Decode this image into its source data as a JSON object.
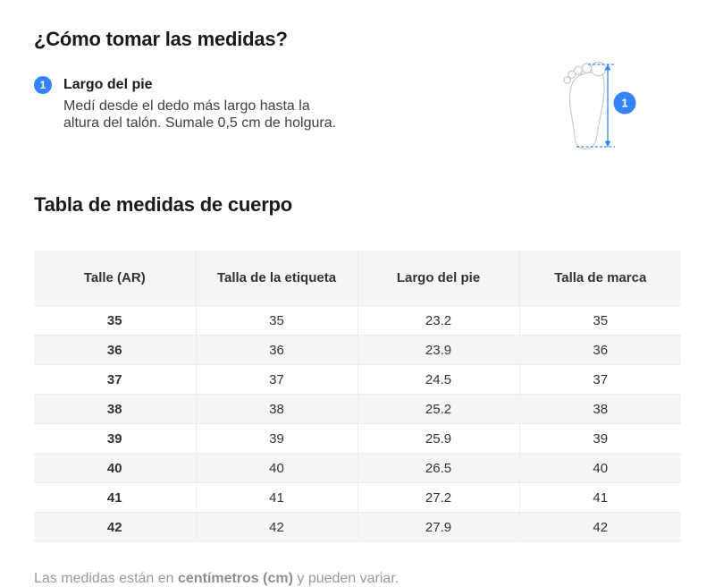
{
  "page": {
    "title": "¿Cómo tomar las medidas?",
    "accent_color": "#3483fa"
  },
  "instructions": {
    "items": [
      {
        "number": "1",
        "label": "Largo del pie",
        "description_line1": "Medí desde el dedo más largo hasta la",
        "description_line2": "altura del talón. Sumale 0,5 cm de holgura."
      }
    ],
    "illustration": {
      "name": "foot-length-diagram",
      "marker": "1"
    }
  },
  "size_table": {
    "title": "Tabla de medidas de cuerpo",
    "columns": [
      "Talle (AR)",
      "Talla de la etiqueta",
      "Largo del pie",
      "Talla de marca"
    ],
    "rows": [
      [
        "35",
        "35",
        "23.2",
        "35"
      ],
      [
        "36",
        "36",
        "23.9",
        "36"
      ],
      [
        "37",
        "37",
        "24.5",
        "37"
      ],
      [
        "38",
        "38",
        "25.2",
        "38"
      ],
      [
        "39",
        "39",
        "25.9",
        "39"
      ],
      [
        "40",
        "40",
        "26.5",
        "40"
      ],
      [
        "41",
        "41",
        "27.2",
        "41"
      ],
      [
        "42",
        "42",
        "27.9",
        "42"
      ]
    ]
  },
  "footer": {
    "prefix": "Las medidas están en ",
    "bold": "centímetros (cm)",
    "suffix": " y pueden variar."
  }
}
